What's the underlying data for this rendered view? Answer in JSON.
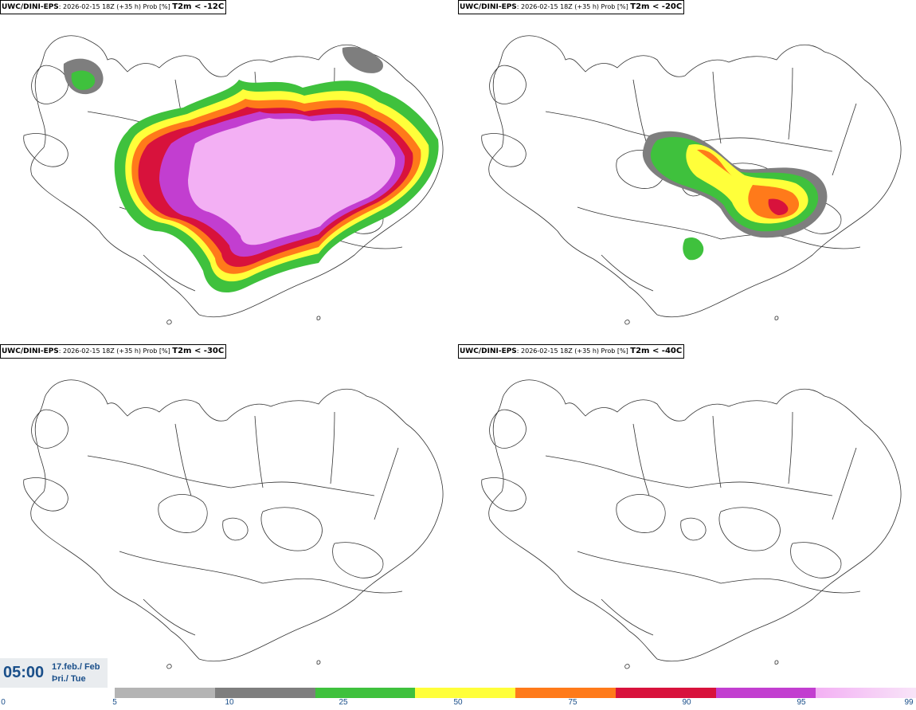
{
  "panels": [
    {
      "source": "UWC/DINI-EPS",
      "run": ": 2026-02-15 18Z (+35 h) Prob [%]",
      "variable": "T2m < -12C",
      "coverage": "extensive"
    },
    {
      "source": "UWC/DINI-EPS",
      "run": ": 2026-02-15 18Z (+35 h) Prob [%]",
      "variable": "T2m < -20C",
      "coverage": "partial"
    },
    {
      "source": "UWC/DINI-EPS",
      "run": ": 2026-02-15 18Z (+35 h) Prob [%]",
      "variable": "T2m < -30C",
      "coverage": "none"
    },
    {
      "source": "UWC/DINI-EPS",
      "run": ": 2026-02-15 18Z (+35 h) Prob [%]",
      "variable": "T2m < -40C",
      "coverage": "none"
    }
  ],
  "time": {
    "clock": "05:00",
    "date": "17.feb./ Feb",
    "day": "Þri./ Tue"
  },
  "legend": {
    "ticks": [
      "0",
      "5",
      "10",
      "25",
      "50",
      "75",
      "90",
      "95",
      "99"
    ],
    "colors": [
      "#b4b4b4",
      "#7e7e7e",
      "#3fc13d",
      "#ffff3a",
      "#ff7a1a",
      "#d8123c",
      "#c23ed0",
      "#f3b0f4"
    ]
  }
}
